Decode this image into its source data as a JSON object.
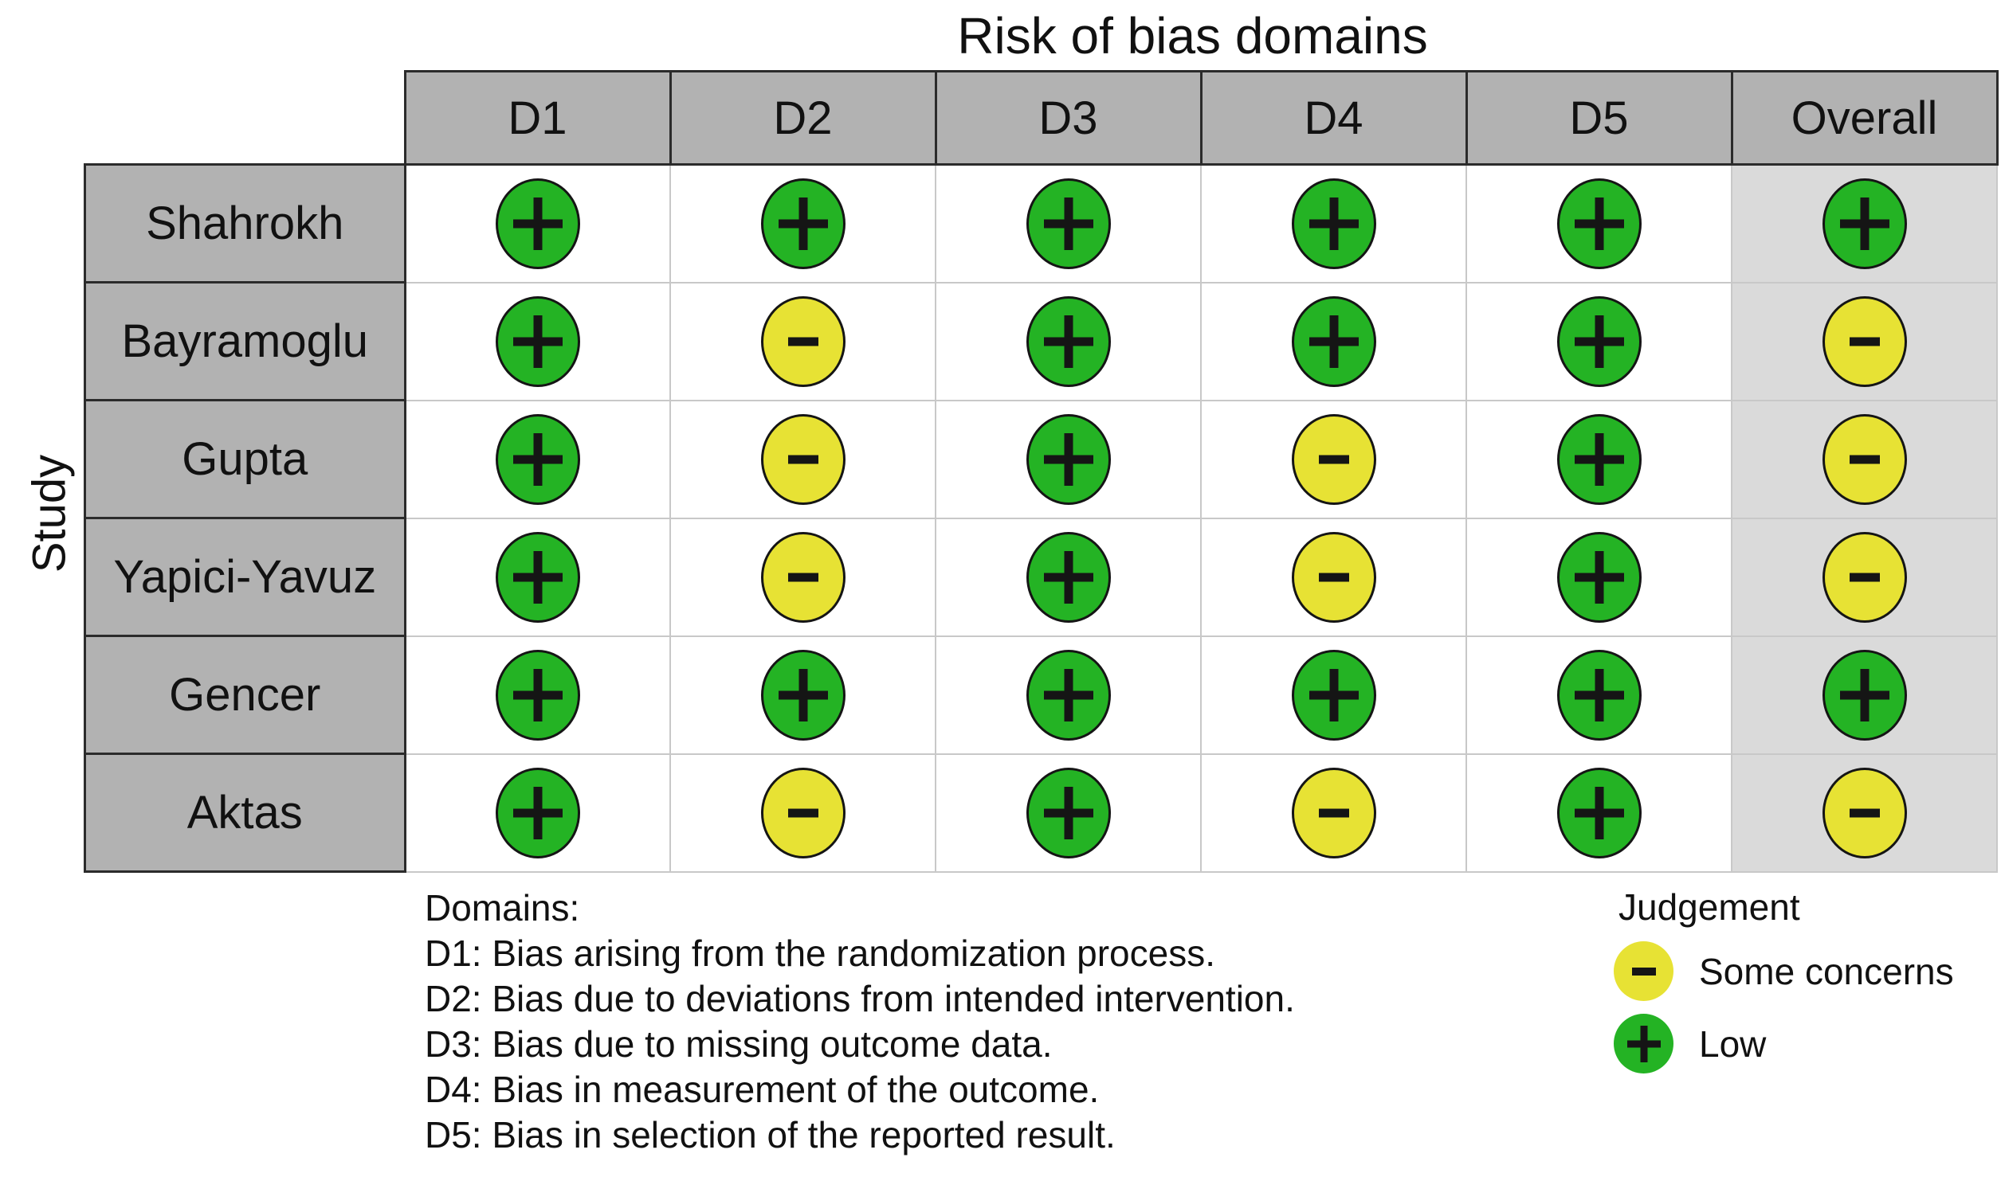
{
  "chart_data": {
    "type": "heatmap",
    "title": "Risk of bias domains",
    "row_axis_label": "Study",
    "columns": [
      "D1",
      "D2",
      "D3",
      "D4",
      "D5",
      "Overall"
    ],
    "rows": [
      {
        "study": "Shahrokh",
        "values": [
          "low",
          "low",
          "low",
          "low",
          "low",
          "low"
        ]
      },
      {
        "study": "Bayramoglu",
        "values": [
          "low",
          "some",
          "low",
          "low",
          "low",
          "some"
        ]
      },
      {
        "study": "Gupta",
        "values": [
          "low",
          "some",
          "low",
          "some",
          "low",
          "some"
        ]
      },
      {
        "study": "Yapici-Yavuz",
        "values": [
          "low",
          "some",
          "low",
          "some",
          "low",
          "some"
        ]
      },
      {
        "study": "Gencer",
        "values": [
          "low",
          "low",
          "low",
          "low",
          "low",
          "low"
        ]
      },
      {
        "study": "Aktas",
        "values": [
          "low",
          "some",
          "low",
          "some",
          "low",
          "some"
        ]
      }
    ],
    "value_symbols": {
      "low": "+",
      "some": "-"
    },
    "value_labels": {
      "low": "Low",
      "some": "Some concerns"
    },
    "value_colors": {
      "low": "#24b324",
      "some": "#e7e234"
    },
    "legend_position": "bottom-right",
    "grid": true
  },
  "legend": {
    "title": "Judgement",
    "items": [
      {
        "key": "some",
        "symbol": "-",
        "label": "Some concerns"
      },
      {
        "key": "low",
        "symbol": "+",
        "label": "Low"
      }
    ]
  },
  "notes": {
    "heading": "Domains:",
    "lines": [
      "D1: Bias arising from the randomization process.",
      "D2: Bias due to deviations from intended intervention.",
      "D3: Bias due to missing outcome data.",
      "D4: Bias in measurement of the outcome.",
      "D5: Bias in selection of the reported result."
    ]
  },
  "colors": {
    "header_gray": "#b2b2b2",
    "overall_gray": "#dadada",
    "grid_light": "#c8c8c8",
    "grid_dark": "#2b2b2b",
    "symbol_black": "#151515",
    "low_green": "#24b324",
    "some_yellow": "#e7e234"
  }
}
